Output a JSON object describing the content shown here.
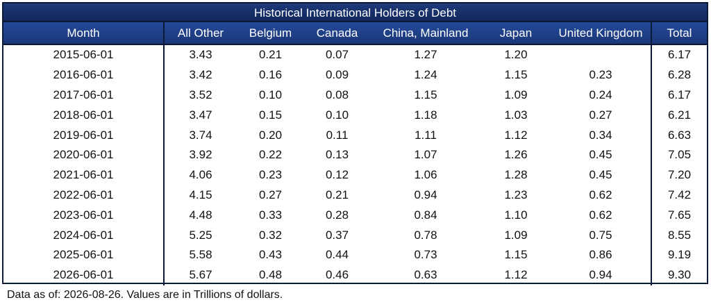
{
  "title": "Historical International Holders of Debt",
  "footnote": "Data as of: 2026-08-26. Values are in Trillions of dollars.",
  "columns": [
    "Month",
    "All Other",
    "Belgium",
    "Canada",
    "China, Mainland",
    "Japan",
    "United Kingdom",
    "Total"
  ],
  "rows": [
    [
      "2015-06-01",
      "3.43",
      "0.21",
      "0.07",
      "1.27",
      "1.20",
      "",
      "6.17"
    ],
    [
      "2016-06-01",
      "3.42",
      "0.16",
      "0.09",
      "1.24",
      "1.15",
      "0.23",
      "6.28"
    ],
    [
      "2017-06-01",
      "3.52",
      "0.10",
      "0.08",
      "1.15",
      "1.09",
      "0.24",
      "6.17"
    ],
    [
      "2018-06-01",
      "3.47",
      "0.15",
      "0.10",
      "1.18",
      "1.03",
      "0.27",
      "6.21"
    ],
    [
      "2019-06-01",
      "3.74",
      "0.20",
      "0.11",
      "1.11",
      "1.12",
      "0.34",
      "6.63"
    ],
    [
      "2020-06-01",
      "3.92",
      "0.22",
      "0.13",
      "1.07",
      "1.26",
      "0.45",
      "7.05"
    ],
    [
      "2021-06-01",
      "4.06",
      "0.23",
      "0.12",
      "1.06",
      "1.28",
      "0.45",
      "7.20"
    ],
    [
      "2022-06-01",
      "4.15",
      "0.27",
      "0.21",
      "0.94",
      "1.23",
      "0.62",
      "7.42"
    ],
    [
      "2023-06-01",
      "4.48",
      "0.33",
      "0.28",
      "0.84",
      "1.10",
      "0.62",
      "7.65"
    ],
    [
      "2024-06-01",
      "5.25",
      "0.32",
      "0.37",
      "0.78",
      "1.09",
      "0.75",
      "8.55"
    ],
    [
      "2025-06-01",
      "5.58",
      "0.43",
      "0.44",
      "0.73",
      "1.15",
      "0.86",
      "9.19"
    ],
    [
      "2026-06-01",
      "5.67",
      "0.48",
      "0.46",
      "0.63",
      "1.12",
      "0.94",
      "9.30"
    ]
  ],
  "colors": {
    "header_bg": "#1f4189",
    "title_bg": "#16306a",
    "border": "#0c1a3a"
  },
  "chart_data": {
    "type": "table",
    "title": "Historical International Holders of Debt",
    "columns": [
      "Month",
      "All Other",
      "Belgium",
      "Canada",
      "China, Mainland",
      "Japan",
      "United Kingdom",
      "Total"
    ],
    "categories": [
      "2015-06-01",
      "2016-06-01",
      "2017-06-01",
      "2018-06-01",
      "2019-06-01",
      "2020-06-01",
      "2021-06-01",
      "2022-06-01",
      "2023-06-01",
      "2024-06-01",
      "2025-06-01",
      "2026-06-01"
    ],
    "series": [
      {
        "name": "All Other",
        "values": [
          3.43,
          3.42,
          3.52,
          3.47,
          3.74,
          3.92,
          4.06,
          4.15,
          4.48,
          5.25,
          5.58,
          5.67
        ]
      },
      {
        "name": "Belgium",
        "values": [
          0.21,
          0.16,
          0.1,
          0.15,
          0.2,
          0.22,
          0.23,
          0.27,
          0.33,
          0.32,
          0.43,
          0.48
        ]
      },
      {
        "name": "Canada",
        "values": [
          0.07,
          0.09,
          0.08,
          0.1,
          0.11,
          0.13,
          0.12,
          0.21,
          0.28,
          0.37,
          0.44,
          0.46
        ]
      },
      {
        "name": "China, Mainland",
        "values": [
          1.27,
          1.24,
          1.15,
          1.18,
          1.11,
          1.07,
          1.06,
          0.94,
          0.84,
          0.78,
          0.73,
          0.63
        ]
      },
      {
        "name": "Japan",
        "values": [
          1.2,
          1.15,
          1.09,
          1.03,
          1.12,
          1.26,
          1.28,
          1.23,
          1.1,
          1.09,
          1.15,
          1.12
        ]
      },
      {
        "name": "United Kingdom",
        "values": [
          null,
          0.23,
          0.24,
          0.27,
          0.34,
          0.45,
          0.45,
          0.62,
          0.62,
          0.75,
          0.86,
          0.94
        ]
      },
      {
        "name": "Total",
        "values": [
          6.17,
          6.28,
          6.17,
          6.21,
          6.63,
          7.05,
          7.2,
          7.42,
          7.65,
          8.55,
          9.19,
          9.3
        ]
      }
    ]
  }
}
